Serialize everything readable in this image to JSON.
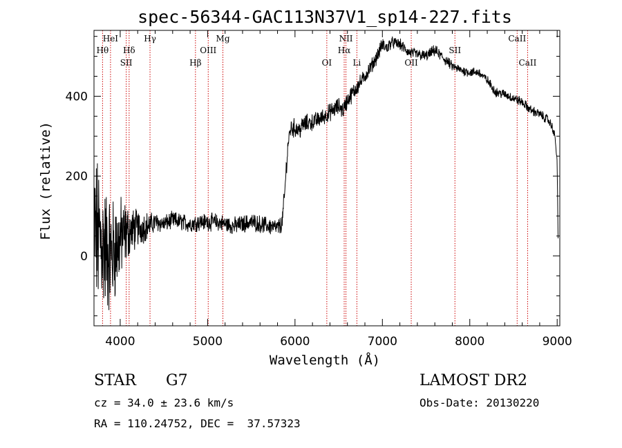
{
  "title": "spec-56344-GAC113N37V1_sp14-227.fits",
  "xlabel": "Wavelength (Å)",
  "ylabel": "Flux (relative)",
  "info": {
    "object_type": "STAR",
    "subclass": "G7",
    "cz": "cz = 34.0 ± 23.6 km/s",
    "coords": "RA = 110.24752, DEC =  37.57323",
    "survey": "LAMOST DR2",
    "obs_date": "Obs-Date: 20130220"
  },
  "chart_data": {
    "type": "line",
    "title": "spec-56344-GAC113N37V1_sp14-227.fits",
    "xlabel": "Wavelength (Å)",
    "ylabel": "Flux (relative)",
    "xlim": [
      3700,
      9030
    ],
    "ylim": [
      -175,
      565
    ],
    "x_ticks": [
      4000,
      5000,
      6000,
      7000,
      8000,
      9000
    ],
    "y_ticks": [
      0,
      200,
      400
    ],
    "grid": false,
    "line_color": "#000000",
    "marker_color": "#cc0000",
    "spectral_lines": [
      {
        "label": "Hθ",
        "wavelength": 3798,
        "row": 1
      },
      {
        "label": "HeI",
        "wavelength": 3889,
        "row": 0
      },
      {
        "label": "Hδ",
        "wavelength": 4102,
        "row": 1
      },
      {
        "label": "SII",
        "wavelength": 4069,
        "row": 2
      },
      {
        "label": "Hγ",
        "wavelength": 4341,
        "row": 0
      },
      {
        "label": "Hβ",
        "wavelength": 4861,
        "row": 2
      },
      {
        "label": "OIII",
        "wavelength": 5007,
        "row": 1
      },
      {
        "label": "Mg",
        "wavelength": 5175,
        "row": 0
      },
      {
        "label": "OI",
        "wavelength": 6364,
        "row": 2
      },
      {
        "label": "NII",
        "wavelength": 6583,
        "row": 0
      },
      {
        "label": "Hα",
        "wavelength": 6563,
        "row": 1
      },
      {
        "label": "Li",
        "wavelength": 6708,
        "row": 2
      },
      {
        "label": "OII",
        "wavelength": 7330,
        "row": 2
      },
      {
        "label": "SII",
        "wavelength": 7830,
        "row": 1
      },
      {
        "label": "CaII",
        "wavelength": 8542,
        "row": 0
      },
      {
        "label": "CaII",
        "wavelength": 8662,
        "row": 2
      }
    ],
    "series": [
      {
        "wavelength": [
          3700,
          3740,
          3780,
          3820,
          3860,
          3900,
          3940,
          3980,
          4020,
          4060,
          4100,
          4150,
          4200,
          4250,
          4300,
          4350,
          4400,
          4500,
          4600,
          4700,
          4800,
          4900,
          5000,
          5100,
          5200,
          5300,
          5400,
          5500,
          5600,
          5700,
          5800,
          5850,
          5880,
          5900,
          5920,
          5950,
          6000,
          6050,
          6100,
          6200,
          6300,
          6400,
          6500,
          6550,
          6600,
          6650,
          6700,
          6800,
          6900,
          6950,
          7000,
          7050,
          7100,
          7200,
          7300,
          7400,
          7500,
          7600,
          7700,
          7800,
          7900,
          8000,
          8100,
          8200,
          8300,
          8400,
          8500,
          8600,
          8700,
          8800,
          8900,
          8950,
          8980,
          9000,
          9010
        ],
        "flux": [
          60,
          50,
          40,
          20,
          10,
          0,
          20,
          30,
          50,
          55,
          60,
          65,
          70,
          72,
          75,
          78,
          85,
          80,
          90,
          85,
          80,
          85,
          85,
          85,
          80,
          75,
          80,
          85,
          80,
          75,
          70,
          80,
          150,
          220,
          280,
          320,
          320,
          315,
          330,
          335,
          345,
          360,
          375,
          365,
          390,
          405,
          420,
          450,
          485,
          505,
          530,
          520,
          535,
          530,
          510,
          505,
          500,
          515,
          495,
          475,
          465,
          460,
          460,
          440,
          410,
          405,
          395,
          385,
          365,
          355,
          340,
          320,
          290,
          230,
          40
        ],
        "noise_amplitude": [
          170,
          160,
          150,
          140,
          130,
          120,
          110,
          100,
          80,
          70,
          55,
          45,
          40,
          35,
          30,
          25,
          20,
          18,
          18,
          18,
          18,
          18,
          18,
          18,
          18,
          18,
          18,
          18,
          18,
          18,
          18,
          18,
          20,
          20,
          20,
          20,
          20,
          20,
          20,
          18,
          18,
          18,
          18,
          18,
          18,
          18,
          18,
          15,
          15,
          15,
          15,
          15,
          12,
          12,
          12,
          12,
          12,
          12,
          12,
          10,
          10,
          10,
          10,
          10,
          10,
          10,
          10,
          10,
          10,
          10,
          10,
          10,
          10,
          10,
          10
        ]
      }
    ]
  }
}
